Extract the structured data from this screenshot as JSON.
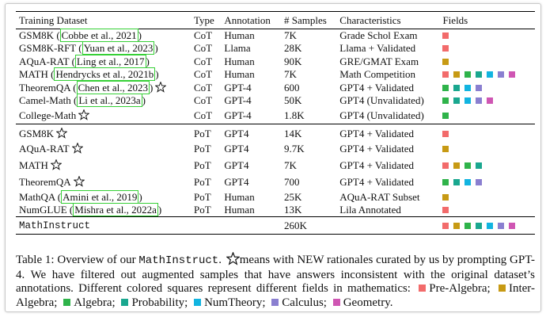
{
  "headers": [
    "Training Dataset",
    "Type",
    "Annotation",
    "# Samples",
    "Characteristics",
    "Fields"
  ],
  "colors": {
    "pre_algebra": "#f26b6b",
    "inter_algebra": "#c79a14",
    "algebra": "#2fb34a",
    "probability": "#1aa78f",
    "numtheory": "#12b4e0",
    "calculus": "#8a7fd0",
    "geometry": "#cf56b3",
    "citation_border": "#36d036"
  },
  "rows": [
    {
      "name": "GSM8K",
      "cite": "Cobbe et al., 2021",
      "star": false,
      "type": "CoT",
      "annotation": "Human",
      "samples": "7K",
      "characteristics": "Grade Schol Exam",
      "fields": [
        "pre_algebra"
      ]
    },
    {
      "name": "GSM8K-RFT",
      "cite": "Yuan et al., 2023",
      "star": false,
      "type": "CoT",
      "annotation": "Llama",
      "samples": "28K",
      "characteristics": "Llama + Validated",
      "fields": [
        "pre_algebra"
      ]
    },
    {
      "name": "AQuA-RAT",
      "cite": "Ling et al., 2017",
      "star": false,
      "type": "CoT",
      "annotation": "Human",
      "samples": "90K",
      "characteristics": "GRE/GMAT Exam",
      "fields": [
        "inter_algebra"
      ]
    },
    {
      "name": "MATH",
      "cite": "Hendrycks et al., 2021b",
      "star": false,
      "type": "CoT",
      "annotation": "Human",
      "samples": "7K",
      "characteristics": "Math Competition",
      "fields": [
        "pre_algebra",
        "inter_algebra",
        "algebra",
        "probability",
        "numtheory",
        "calculus",
        "geometry"
      ]
    },
    {
      "name": "TheoremQA",
      "cite": "Chen et al., 2023",
      "star": true,
      "type": "CoT",
      "annotation": "GPT-4",
      "samples": "600",
      "characteristics": "GPT4 + Validated",
      "fields": [
        "algebra",
        "probability",
        "numtheory",
        "calculus"
      ]
    },
    {
      "name": "Camel-Math",
      "cite": "Li et al., 2023a",
      "star": false,
      "type": "CoT",
      "annotation": "GPT-4",
      "samples": "50K",
      "characteristics": "GPT4 (Unvalidated)",
      "fields": [
        "algebra",
        "probability",
        "numtheory",
        "calculus",
        "geometry"
      ]
    },
    {
      "name": "College-Math",
      "cite": "",
      "star": true,
      "type": "CoT",
      "annotation": "GPT-4",
      "samples": "1.8K",
      "characteristics": "GPT4 (Unvalidated)",
      "fields": [
        "algebra"
      ]
    },
    {
      "name": "GSM8K",
      "cite": "",
      "star": true,
      "type": "PoT",
      "annotation": "GPT4",
      "samples": "14K",
      "characteristics": "GPT4 + Validated",
      "fields": [
        "pre_algebra"
      ]
    },
    {
      "name": "AQuA-RAT",
      "cite": "",
      "star": true,
      "type": "PoT",
      "annotation": "GPT4",
      "samples": "9.7K",
      "characteristics": "GPT4 + Validated",
      "fields": [
        "inter_algebra"
      ]
    },
    {
      "name": "MATH",
      "cite": "",
      "star": true,
      "type": "PoT",
      "annotation": "GPT4",
      "samples": "7K",
      "characteristics": "GPT4 + Validated",
      "fields": [
        "pre_algebra",
        "inter_algebra",
        "algebra",
        "probability"
      ]
    },
    {
      "name": "TheoremQA",
      "cite": "",
      "star": true,
      "type": "PoT",
      "annotation": "GPT4",
      "samples": "700",
      "characteristics": "GPT4 + Validated",
      "fields": [
        "algebra",
        "probability",
        "numtheory",
        "calculus"
      ]
    },
    {
      "name": "MathQA",
      "cite": "Amini et al., 2019",
      "star": false,
      "type": "PoT",
      "annotation": "Human",
      "samples": "25K",
      "characteristics": "AQuA-RAT Subset",
      "fields": [
        "inter_algebra"
      ]
    },
    {
      "name": "NumGLUE",
      "cite": "Mishra et al., 2022a",
      "star": false,
      "type": "PoT",
      "annotation": "Human",
      "samples": "13K",
      "characteristics": "Lila Annotated",
      "fields": [
        "pre_algebra"
      ]
    }
  ],
  "total": {
    "name": "MathInstruct",
    "samples": "260K",
    "fields": [
      "pre_algebra",
      "inter_algebra",
      "algebra",
      "probability",
      "numtheory",
      "calculus",
      "geometry"
    ]
  },
  "caption": {
    "label": "Table 1:",
    "p1": "Overview of our",
    "name": "MathInstruct",
    "p2": "means with NEW rationales curated by us by prompting GPT-4. We have filtered out augmented samples that have answers inconsistent with the original dataset’s annotations. Different colored squares represent different fields in mathematics:",
    "legend": [
      {
        "key": "pre_algebra",
        "label": "Pre-Algebra;"
      },
      {
        "key": "inter_algebra",
        "label": "Inter-Algebra;"
      },
      {
        "key": "algebra",
        "label": "Algebra;"
      },
      {
        "key": "probability",
        "label": "Probability;"
      },
      {
        "key": "numtheory",
        "label": "NumTheory;"
      },
      {
        "key": "calculus",
        "label": "Calculus;"
      },
      {
        "key": "geometry",
        "label": "Geometry."
      }
    ]
  }
}
